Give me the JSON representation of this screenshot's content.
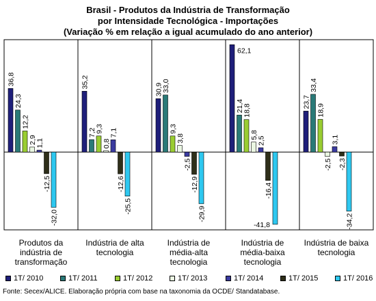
{
  "title_lines": [
    "Brasil - Produtos da Indústria de Transformação",
    "por Intensidade Tecnológica - Importações",
    "(Variação % em relação a igual acumulado do ano anterior)"
  ],
  "source": "Fonte: Secex/ALICE. Elaboração própria com base na taxonomia da OCDE/ Standatabase.",
  "colors": [
    "#1f1f7a",
    "#2a7a78",
    "#9acd32",
    "#eaf7e2",
    "#3b3ba0",
    "#2f2f1a",
    "#2ec8f0"
  ],
  "chart_data": {
    "type": "bar",
    "title": "Brasil - Produtos da Indústria de Transformação por Intensidade Tecnológica - Importações (Variação % em relação a igual acumulado do ano anterior)",
    "categories": [
      "Produtos da indústria de transformação",
      "Indústria de alta tecnologia",
      "Indústria de média-alta tecnologia",
      "Indústria de média-baixa tecnologia",
      "Indústria de baixa tecnologia"
    ],
    "category_lines": [
      [
        "Produtos da",
        "indústria de",
        "transformação"
      ],
      [
        "Indústria de alta",
        "tecnologia"
      ],
      [
        "Indústria de",
        "média-alta",
        "tecnologia"
      ],
      [
        "Indústria de",
        "média-baixa",
        "tecnologia"
      ],
      [
        "Indústria de baixa",
        "tecnologia"
      ]
    ],
    "series": [
      {
        "name": "1T/ 2010",
        "values": [
          36.8,
          35.2,
          30.9,
          62.1,
          23.7
        ],
        "labels": [
          "36,8",
          "35,2",
          "30,9",
          "62,1",
          "23,7"
        ]
      },
      {
        "name": "1T/ 2011",
        "values": [
          24.3,
          7.2,
          33.0,
          21.4,
          33.4
        ],
        "labels": [
          "24,3",
          "7,2",
          "33,0",
          "21,4",
          "33,4"
        ]
      },
      {
        "name": "1T/ 2012",
        "values": [
          12.2,
          9.3,
          9.3,
          18.8,
          18.9
        ],
        "labels": [
          "12,2",
          "9,3",
          "9,3",
          "18,8",
          "18,9"
        ]
      },
      {
        "name": "1T/ 2013",
        "values": [
          2.9,
          0.8,
          3.8,
          5.8,
          -2.5
        ],
        "labels": [
          "2,9",
          "0,8",
          "3,8",
          "5,8",
          "-2,5"
        ]
      },
      {
        "name": "1T/ 2014",
        "values": [
          1.1,
          7.1,
          -2.5,
          2.5,
          3.1
        ],
        "labels": [
          "1,1",
          "7,1",
          "-2,5",
          "2,5",
          "3,1"
        ]
      },
      {
        "name": "1T/ 2015",
        "values": [
          -12.5,
          -12.6,
          -12.9,
          -16.4,
          -2.3
        ],
        "labels": [
          "-12,5",
          "-12,6",
          "-12,9",
          "-16,4",
          "-2,3"
        ]
      },
      {
        "name": "1T/ 2016",
        "values": [
          -32.0,
          -25.5,
          -29.9,
          -41.8,
          -34.2
        ],
        "labels": [
          "-32,0",
          "-25,5",
          "-29,9",
          "-41,8",
          "-34,2"
        ]
      }
    ],
    "ylim": [
      -45,
      65
    ],
    "grid": false,
    "legend": "bottom",
    "xlabel": "",
    "ylabel": ""
  }
}
